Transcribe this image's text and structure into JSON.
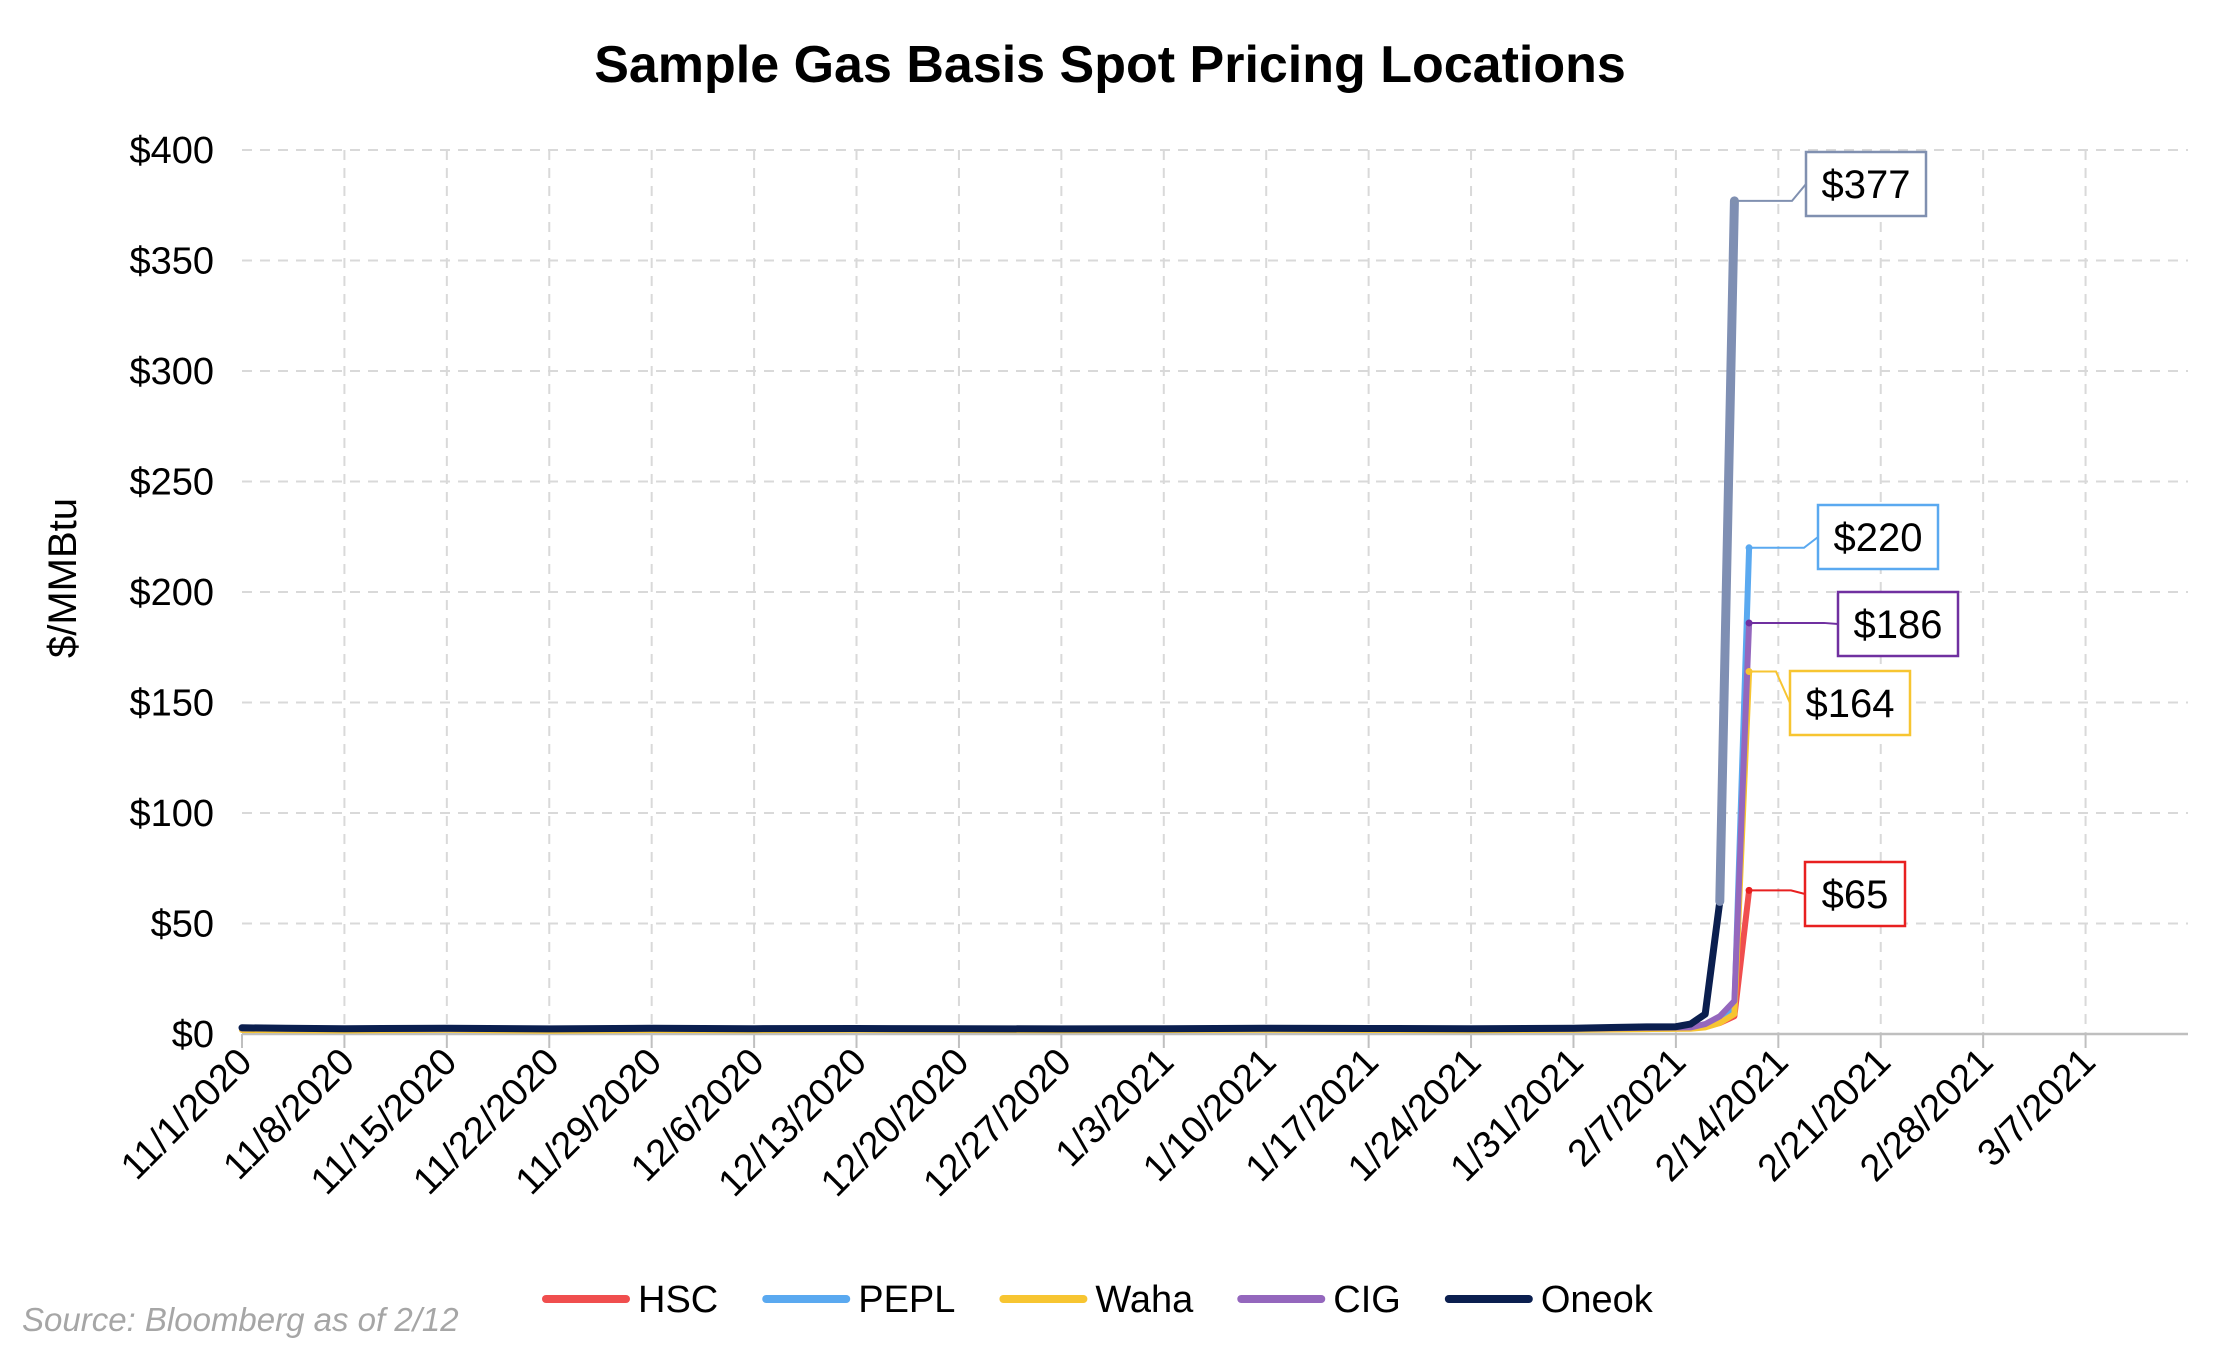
{
  "chart_data": {
    "type": "line",
    "title": "Sample Gas Basis Spot Pricing Locations",
    "ylabel": "$/MMBtu",
    "xlabel": "",
    "y_tick_labels": [
      "$0",
      "$50",
      "$100",
      "$150",
      "$200",
      "$250",
      "$300",
      "$350",
      "$400"
    ],
    "y_ticks": [
      0,
      50,
      100,
      150,
      200,
      250,
      300,
      350,
      400
    ],
    "ylim": [
      0,
      400
    ],
    "x_tick_labels": [
      "11/1/2020",
      "11/8/2020",
      "11/15/2020",
      "11/22/2020",
      "11/29/2020",
      "12/6/2020",
      "12/13/2020",
      "12/20/2020",
      "12/27/2020",
      "1/3/2021",
      "1/10/2021",
      "1/17/2021",
      "1/24/2021",
      "1/31/2021",
      "2/7/2021",
      "2/14/2021",
      "2/21/2021",
      "2/28/2021",
      "3/7/2021"
    ],
    "xlim": [
      "2020-11-01",
      "2021-03-14"
    ],
    "grid": true,
    "legend_position": "bottom",
    "series": [
      {
        "name": "HSC",
        "color": "#f04e4e",
        "points": [
          [
            "2020-11-01",
            2.6
          ],
          [
            "2020-11-08",
            2.3
          ],
          [
            "2020-11-15",
            2.5
          ],
          [
            "2020-11-22",
            2.1
          ],
          [
            "2020-11-29",
            2.4
          ],
          [
            "2020-12-06",
            2.3
          ],
          [
            "2020-12-13",
            2.4
          ],
          [
            "2020-12-20",
            2.3
          ],
          [
            "2020-12-27",
            2.2
          ],
          [
            "2021-01-03",
            2.3
          ],
          [
            "2021-01-10",
            2.4
          ],
          [
            "2021-01-17",
            2.3
          ],
          [
            "2021-01-24",
            2.2
          ],
          [
            "2021-01-31",
            2.3
          ],
          [
            "2021-02-05",
            2.5
          ],
          [
            "2021-02-08",
            2.6
          ],
          [
            "2021-02-09",
            3.5
          ],
          [
            "2021-02-10",
            5
          ],
          [
            "2021-02-11",
            8
          ],
          [
            "2021-02-12",
            65
          ]
        ],
        "end_label": "$65"
      },
      {
        "name": "PEPL",
        "color": "#5aa9f0",
        "points": [
          [
            "2020-11-01",
            2.4
          ],
          [
            "2020-11-08",
            2.2
          ],
          [
            "2020-11-15",
            2.3
          ],
          [
            "2020-11-22",
            2.0
          ],
          [
            "2020-11-29",
            2.3
          ],
          [
            "2020-12-06",
            2.2
          ],
          [
            "2020-12-13",
            2.3
          ],
          [
            "2020-12-20",
            2.2
          ],
          [
            "2020-12-27",
            2.1
          ],
          [
            "2021-01-03",
            2.2
          ],
          [
            "2021-01-10",
            2.3
          ],
          [
            "2021-01-17",
            2.2
          ],
          [
            "2021-01-24",
            2.1
          ],
          [
            "2021-01-31",
            2.2
          ],
          [
            "2021-02-05",
            2.5
          ],
          [
            "2021-02-08",
            2.8
          ],
          [
            "2021-02-09",
            4
          ],
          [
            "2021-02-10",
            7
          ],
          [
            "2021-02-11",
            12
          ],
          [
            "2021-02-12",
            220
          ]
        ],
        "end_label": "$220"
      },
      {
        "name": "Waha",
        "color": "#f7c531",
        "points": [
          [
            "2020-11-01",
            1.8
          ],
          [
            "2020-11-08",
            1.6
          ],
          [
            "2020-11-15",
            1.9
          ],
          [
            "2020-11-22",
            1.5
          ],
          [
            "2020-11-29",
            1.8
          ],
          [
            "2020-12-06",
            1.7
          ],
          [
            "2020-12-13",
            1.9
          ],
          [
            "2020-12-20",
            1.8
          ],
          [
            "2020-12-27",
            1.7
          ],
          [
            "2021-01-03",
            1.8
          ],
          [
            "2021-01-10",
            1.9
          ],
          [
            "2021-01-17",
            1.8
          ],
          [
            "2021-01-24",
            1.7
          ],
          [
            "2021-01-31",
            1.9
          ],
          [
            "2021-02-05",
            2.2
          ],
          [
            "2021-02-08",
            2.4
          ],
          [
            "2021-02-09",
            3
          ],
          [
            "2021-02-10",
            5
          ],
          [
            "2021-02-11",
            9
          ],
          [
            "2021-02-12",
            164
          ]
        ],
        "end_label": "$164"
      },
      {
        "name": "CIG",
        "color": "#9467bd",
        "points": [
          [
            "2020-11-01",
            2.5
          ],
          [
            "2020-11-08",
            2.3
          ],
          [
            "2020-11-15",
            2.4
          ],
          [
            "2020-11-22",
            2.2
          ],
          [
            "2020-11-29",
            2.5
          ],
          [
            "2020-12-06",
            2.4
          ],
          [
            "2020-12-13",
            2.5
          ],
          [
            "2020-12-20",
            2.4
          ],
          [
            "2020-12-27",
            2.3
          ],
          [
            "2021-01-03",
            2.4
          ],
          [
            "2021-01-10",
            2.5
          ],
          [
            "2021-01-17",
            2.4
          ],
          [
            "2021-01-24",
            2.3
          ],
          [
            "2021-01-31",
            2.4
          ],
          [
            "2021-02-05",
            2.8
          ],
          [
            "2021-02-08",
            3.0
          ],
          [
            "2021-02-09",
            4.5
          ],
          [
            "2021-02-10",
            8
          ],
          [
            "2021-02-11",
            15
          ],
          [
            "2021-02-12",
            186
          ]
        ],
        "end_label": "$186"
      },
      {
        "name": "Oneok",
        "color": "#0b1f4f",
        "points": [
          [
            "2020-11-01",
            2.8
          ],
          [
            "2020-11-04",
            2.6
          ],
          [
            "2020-11-08",
            2.4
          ],
          [
            "2020-11-15",
            2.6
          ],
          [
            "2020-11-22",
            2.3
          ],
          [
            "2020-11-29",
            2.6
          ],
          [
            "2020-12-06",
            2.4
          ],
          [
            "2020-12-13",
            2.5
          ],
          [
            "2020-12-20",
            2.4
          ],
          [
            "2020-12-27",
            2.3
          ],
          [
            "2021-01-03",
            2.4
          ],
          [
            "2021-01-10",
            2.6
          ],
          [
            "2021-01-17",
            2.5
          ],
          [
            "2021-01-24",
            2.4
          ],
          [
            "2021-01-31",
            2.6
          ],
          [
            "2021-02-03",
            3.0
          ],
          [
            "2021-02-05",
            3.2
          ],
          [
            "2021-02-07",
            3.3
          ],
          [
            "2021-02-08",
            4.5
          ],
          [
            "2021-02-09",
            9
          ],
          [
            "2021-02-10",
            60
          ],
          [
            "2021-02-11",
            377
          ]
        ],
        "end_label": "$377"
      }
    ],
    "callouts": [
      {
        "series": "Oneok",
        "text": "$377",
        "color": "#8090b0"
      },
      {
        "series": "PEPL",
        "text": "$220",
        "color": "#5aa9f0"
      },
      {
        "series": "CIG",
        "text": "$186",
        "color": "#7030a0"
      },
      {
        "series": "Waha",
        "text": "$164",
        "color": "#f7c531"
      },
      {
        "series": "HSC",
        "text": "$65",
        "color": "#e82020"
      }
    ]
  },
  "source_note": "Source: Bloomberg as of 2/12"
}
